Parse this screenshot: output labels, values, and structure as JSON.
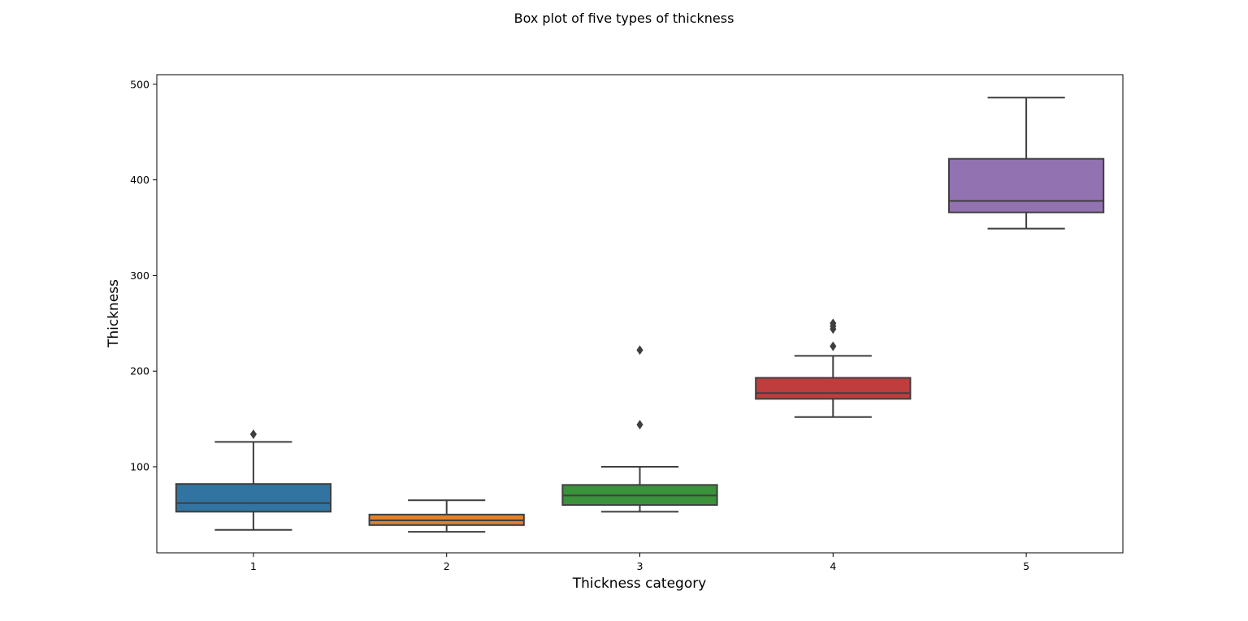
{
  "chart_data": {
    "type": "box",
    "title": "Box plot of five types of thickness",
    "xlabel": "Thickness category",
    "ylabel": "Thickness",
    "ylim": [
      10,
      510
    ],
    "yticks": [
      100,
      200,
      300,
      400,
      500
    ],
    "grid": false,
    "legend": "none",
    "categories": [
      "1",
      "2",
      "3",
      "4",
      "5"
    ],
    "line_color": "#3f3f3f",
    "boxes": [
      {
        "category": "1",
        "color": "#3274a1",
        "whisker_low": 34,
        "q1": 53,
        "median": 62,
        "q3": 82,
        "whisker_high": 126,
        "outliers": [
          134
        ]
      },
      {
        "category": "2",
        "color": "#e1812c",
        "whisker_low": 32,
        "q1": 39,
        "median": 44,
        "q3": 50,
        "whisker_high": 65,
        "outliers": []
      },
      {
        "category": "3",
        "color": "#3a923a",
        "whisker_low": 53,
        "q1": 60,
        "median": 70,
        "q3": 81,
        "whisker_high": 100,
        "outliers": [
          144,
          222
        ]
      },
      {
        "category": "4",
        "color": "#c03d3e",
        "whisker_low": 152,
        "q1": 171,
        "median": 177,
        "q3": 193,
        "whisker_high": 216,
        "outliers": [
          226,
          244,
          247,
          250
        ]
      },
      {
        "category": "5",
        "color": "#9372b2",
        "whisker_low": 349,
        "q1": 366,
        "median": 378,
        "q3": 422,
        "whisker_high": 486,
        "outliers": []
      }
    ]
  }
}
